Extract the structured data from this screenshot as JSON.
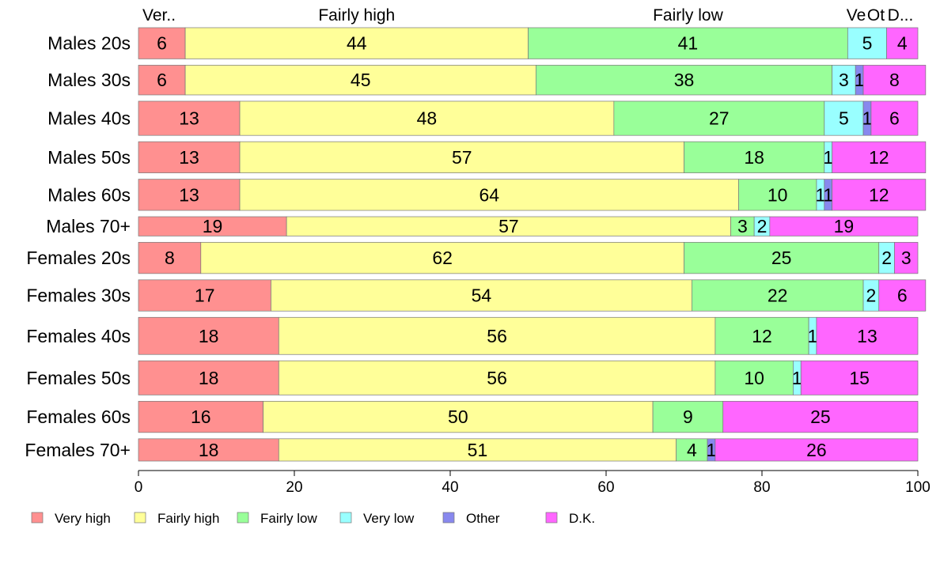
{
  "chart_data": {
    "type": "bar",
    "orientation": "horizontal",
    "stacked": true,
    "title": "",
    "xlabel": "",
    "ylabel": "",
    "xlim": [
      0,
      100
    ],
    "x_ticks": [
      "0",
      "20",
      "40",
      "60",
      "80",
      "100"
    ],
    "grid": false,
    "legend_position": "bottom",
    "top_labels": [
      "Ver..",
      "Fairly high",
      "Fairly low",
      "Ve",
      "Ot",
      "D..."
    ],
    "categories": [
      "Males 20s",
      "Males 30s",
      "Males 40s",
      "Males 50s",
      "Males 60s",
      "Males 70+",
      "Females 20s",
      "Females 30s",
      "Females 40s",
      "Females 50s",
      "Females 60s",
      "Females 70+"
    ],
    "row_weights": [
      0.84,
      0.8,
      0.92,
      0.84,
      0.84,
      0.52,
      0.84,
      0.84,
      1.0,
      0.92,
      0.84,
      0.6
    ],
    "series": [
      {
        "name": "Very high",
        "color": "#ff9090",
        "values": [
          6,
          6,
          13,
          13,
          13,
          19,
          8,
          17,
          18,
          18,
          16,
          18
        ]
      },
      {
        "name": "Fairly high",
        "color": "#ffff99",
        "values": [
          44,
          45,
          48,
          57,
          64,
          57,
          62,
          54,
          56,
          56,
          50,
          51
        ]
      },
      {
        "name": "Fairly low",
        "color": "#99ff99",
        "values": [
          41,
          38,
          27,
          18,
          10,
          3,
          25,
          22,
          12,
          10,
          9,
          4
        ]
      },
      {
        "name": "Very low",
        "color": "#99ffff",
        "values": [
          5,
          3,
          5,
          1,
          1,
          2,
          2,
          2,
          1,
          1,
          0,
          0
        ]
      },
      {
        "name": "Other",
        "color": "#8888ee",
        "values": [
          0,
          1,
          1,
          0,
          1,
          0,
          0,
          0,
          0,
          0,
          0,
          1
        ]
      },
      {
        "name": "D.K.",
        "color": "#ff66ff",
        "values": [
          4,
          8,
          6,
          12,
          12,
          19,
          3,
          6,
          13,
          15,
          25,
          26
        ]
      }
    ]
  }
}
